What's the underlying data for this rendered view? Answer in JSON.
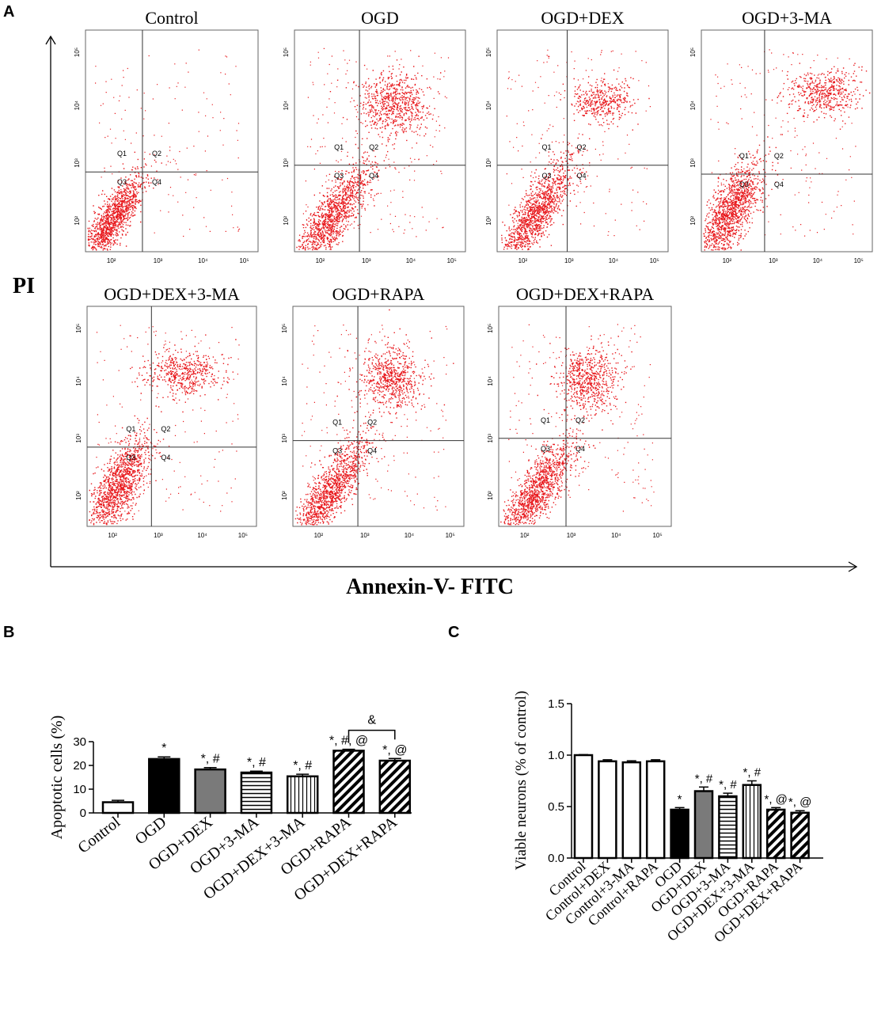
{
  "panel_letters": {
    "a": "A",
    "b": "B",
    "c": "C"
  },
  "panel_a": {
    "y_label": "PI",
    "x_label": "Annexin-V- FITC",
    "quadrant_labels": [
      "Q1",
      "Q2",
      "Q3",
      "Q4"
    ],
    "tick_labels": [
      "10²",
      "10³",
      "10⁴",
      "10⁵"
    ],
    "dot_color": "#e8181c",
    "plots": [
      {
        "title": "Control"
      },
      {
        "title": "OGD"
      },
      {
        "title": "OGD+DEX"
      },
      {
        "title": "OGD+3-MA"
      },
      {
        "title": "OGD+DEX+3-MA"
      },
      {
        "title": "OGD+RAPA"
      },
      {
        "title": "OGD+DEX+RAPA"
      }
    ]
  },
  "chart_data": [
    {
      "panel": "B",
      "type": "bar",
      "ylabel": "Apoptotic cells  (%)",
      "xlabel": "",
      "ylim": [
        0,
        30
      ],
      "yticks": [
        0,
        10,
        20,
        30
      ],
      "categories": [
        "Control",
        "OGD",
        "OGD+DEX",
        "OGD+3-MA",
        "OGD+DEX+3-MA",
        "OGD+RAPA",
        "OGD+DEX+RAPA"
      ],
      "values": [
        4.5,
        22.7,
        18.3,
        17.0,
        15.4,
        26.2,
        22.0
      ],
      "errors": [
        0.8,
        0.9,
        0.8,
        0.6,
        0.9,
        0.6,
        0.9
      ],
      "fills": [
        "white",
        "black",
        "gray",
        "hlines",
        "vlines",
        "diag",
        "diag"
      ],
      "annotations": [
        "",
        "*",
        "*, #",
        "*, #",
        "*, #",
        "*, #, @",
        "*, @"
      ],
      "bracket": {
        "from": "OGD+RAPA",
        "to": "OGD+DEX+RAPA",
        "label": "&"
      }
    },
    {
      "panel": "C",
      "type": "bar",
      "ylabel": "Viable neurons (% of control)",
      "xlabel": "",
      "ylim": [
        0,
        1.5
      ],
      "yticks": [
        0.0,
        0.5,
        1.0,
        1.5
      ],
      "categories": [
        "Control",
        "Control+DEX",
        "Control+3-MA",
        "Control+RAPA",
        "OGD",
        "OGD+DEX",
        "OGD+3-MA",
        "OGD+DEX+3-MA",
        "OGD+RAPA",
        "OGD+DEX+RAPA"
      ],
      "values": [
        1.0,
        0.94,
        0.93,
        0.94,
        0.47,
        0.65,
        0.6,
        0.71,
        0.47,
        0.44
      ],
      "errors": [
        0.005,
        0.015,
        0.015,
        0.015,
        0.02,
        0.04,
        0.03,
        0.04,
        0.02,
        0.02
      ],
      "fills": [
        "white",
        "white",
        "white",
        "white",
        "black",
        "gray",
        "hlines",
        "vlines",
        "diag",
        "diag"
      ],
      "annotations": [
        "",
        "",
        "",
        "",
        "*",
        "*, #",
        "*, #",
        "*, #",
        "*, @",
        "*, @"
      ]
    }
  ]
}
